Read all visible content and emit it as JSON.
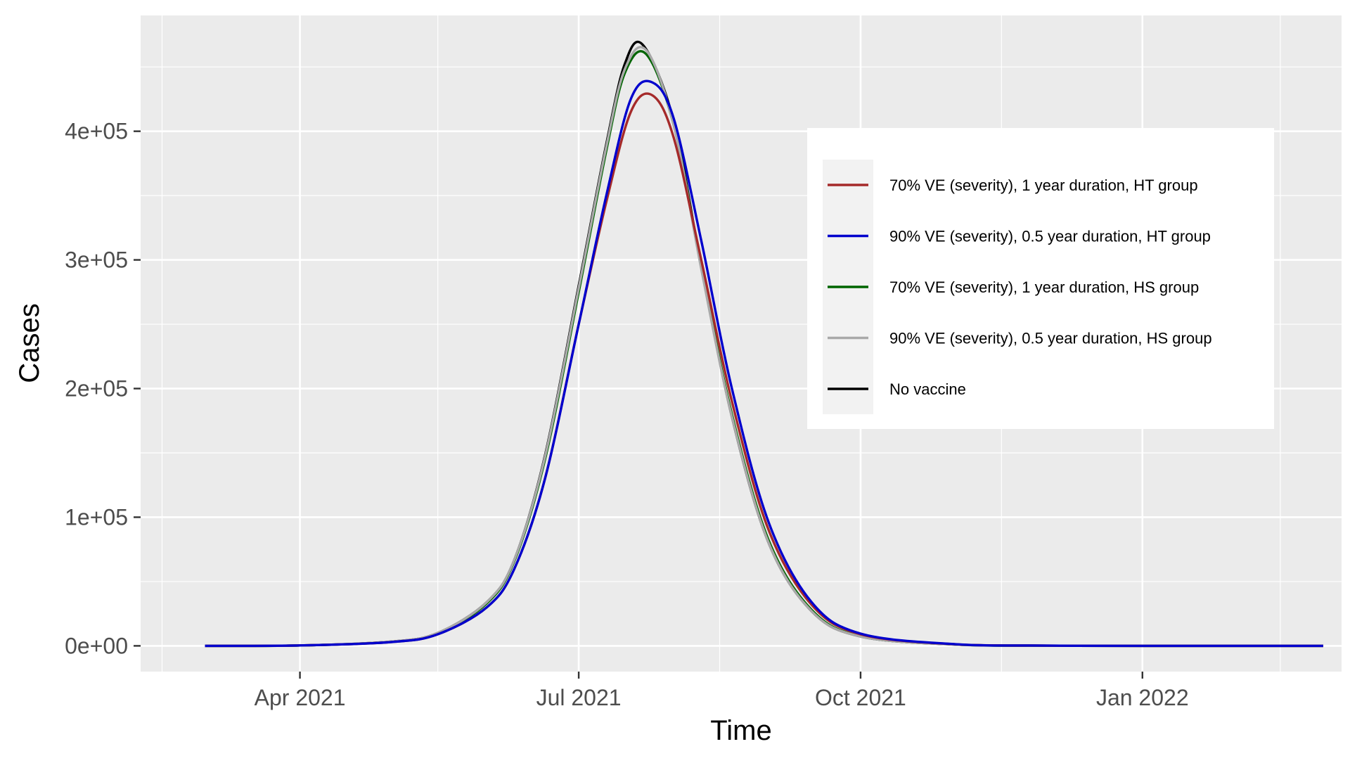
{
  "chart_data": {
    "type": "line",
    "title": "",
    "xlabel": "Time",
    "ylabel": "Cases",
    "x_type": "date",
    "xlim": [
      "2021-02-08",
      "2022-03-07"
    ],
    "ylim": [
      -20000,
      490000
    ],
    "x_ticks": [
      {
        "date": "2021-04-01",
        "label": "Apr 2021"
      },
      {
        "date": "2021-07-01",
        "label": "Jul 2021"
      },
      {
        "date": "2021-10-01",
        "label": "Oct 2021"
      },
      {
        "date": "2022-01-01",
        "label": "Jan 2022"
      }
    ],
    "x_minor_ticks": [
      "2021-02-15",
      "2021-05-16",
      "2021-08-16",
      "2021-11-16",
      "2022-02-15"
    ],
    "y_ticks": [
      {
        "value": 0,
        "label": "0e+00"
      },
      {
        "value": 100000,
        "label": "1e+05"
      },
      {
        "value": 200000,
        "label": "2e+05"
      },
      {
        "value": 300000,
        "label": "3e+05"
      },
      {
        "value": 400000,
        "label": "4e+05"
      }
    ],
    "y_minor_ticks": [
      50000,
      150000,
      250000,
      350000,
      450000
    ],
    "grid": true,
    "legend_position": "top-right",
    "series": [
      {
        "name": "70% VE (severity), 1 year duration, HT group",
        "color": "#a52a2a",
        "x": [
          "2021-03-01",
          "2021-04-01",
          "2021-05-01",
          "2021-05-16",
          "2021-06-01",
          "2021-06-10",
          "2021-06-20",
          "2021-07-01",
          "2021-07-10",
          "2021-07-18",
          "2021-07-25",
          "2021-08-01",
          "2021-08-10",
          "2021-08-20",
          "2021-09-01",
          "2021-09-15",
          "2021-10-01",
          "2021-11-01",
          "2021-12-01",
          "2022-01-01",
          "2022-03-01"
        ],
        "y": [
          0,
          300,
          3000,
          9000,
          30000,
          60000,
          130000,
          250000,
          345000,
          415000,
          428000,
          395000,
          300000,
          190000,
          90000,
          32000,
          9000,
          1200,
          200,
          0,
          0
        ]
      },
      {
        "name": "90% VE (severity), 0.5 year duration, HT group",
        "color": "#0000cd",
        "x": [
          "2021-03-01",
          "2021-04-01",
          "2021-05-01",
          "2021-05-16",
          "2021-06-01",
          "2021-06-10",
          "2021-06-20",
          "2021-07-01",
          "2021-07-10",
          "2021-07-18",
          "2021-07-25",
          "2021-08-01",
          "2021-08-10",
          "2021-08-20",
          "2021-09-01",
          "2021-09-15",
          "2021-10-01",
          "2021-11-01",
          "2021-12-01",
          "2022-01-01",
          "2022-03-01"
        ],
        "y": [
          0,
          300,
          3000,
          9000,
          30000,
          60000,
          130000,
          250000,
          350000,
          425000,
          438000,
          410000,
          315000,
          200000,
          96000,
          34000,
          9500,
          1300,
          200,
          0,
          0
        ]
      },
      {
        "name": "70% VE (severity), 1 year duration, HS group",
        "color": "#006400",
        "x": [
          "2021-03-01",
          "2021-04-01",
          "2021-05-01",
          "2021-05-16",
          "2021-06-01",
          "2021-06-10",
          "2021-06-20",
          "2021-07-01",
          "2021-07-10",
          "2021-07-16",
          "2021-07-23",
          "2021-08-01",
          "2021-08-10",
          "2021-08-20",
          "2021-09-01",
          "2021-09-15",
          "2021-10-01",
          "2021-11-01",
          "2021-12-01",
          "2022-01-01",
          "2022-03-01"
        ],
        "y": [
          0,
          300,
          3200,
          9800,
          33000,
          66000,
          145000,
          275000,
          385000,
          445000,
          460000,
          405000,
          295000,
          180000,
          82000,
          28000,
          7500,
          1000,
          150,
          0,
          0
        ]
      },
      {
        "name": "90% VE (severity), 0.5 year duration, HS group",
        "color": "#a9a9a9",
        "x": [
          "2021-03-01",
          "2021-04-01",
          "2021-05-01",
          "2021-05-16",
          "2021-06-01",
          "2021-06-10",
          "2021-06-20",
          "2021-07-01",
          "2021-07-10",
          "2021-07-16",
          "2021-07-23",
          "2021-08-01",
          "2021-08-10",
          "2021-08-20",
          "2021-09-01",
          "2021-09-15",
          "2021-10-01",
          "2021-11-01",
          "2021-12-01",
          "2022-01-01",
          "2022-03-01"
        ],
        "y": [
          0,
          300,
          3300,
          10000,
          34000,
          67000,
          147000,
          278000,
          388000,
          448000,
          463000,
          405000,
          293000,
          178000,
          80000,
          27000,
          7300,
          1000,
          150,
          0,
          0
        ]
      },
      {
        "name": "No vaccine",
        "color": "#000000",
        "x": [
          "2021-03-01",
          "2021-04-01",
          "2021-05-01",
          "2021-05-16",
          "2021-06-01",
          "2021-06-10",
          "2021-06-20",
          "2021-07-01",
          "2021-07-10",
          "2021-07-16",
          "2021-07-22",
          "2021-08-01",
          "2021-08-10",
          "2021-08-20",
          "2021-09-01",
          "2021-09-15",
          "2021-10-01",
          "2021-11-01",
          "2021-12-01",
          "2022-01-01",
          "2022-03-01"
        ],
        "y": [
          0,
          300,
          3300,
          10000,
          34000,
          67000,
          148000,
          280000,
          390000,
          452000,
          467000,
          408000,
          295000,
          178000,
          80000,
          27000,
          7300,
          1000,
          150,
          0,
          0
        ]
      }
    ]
  }
}
